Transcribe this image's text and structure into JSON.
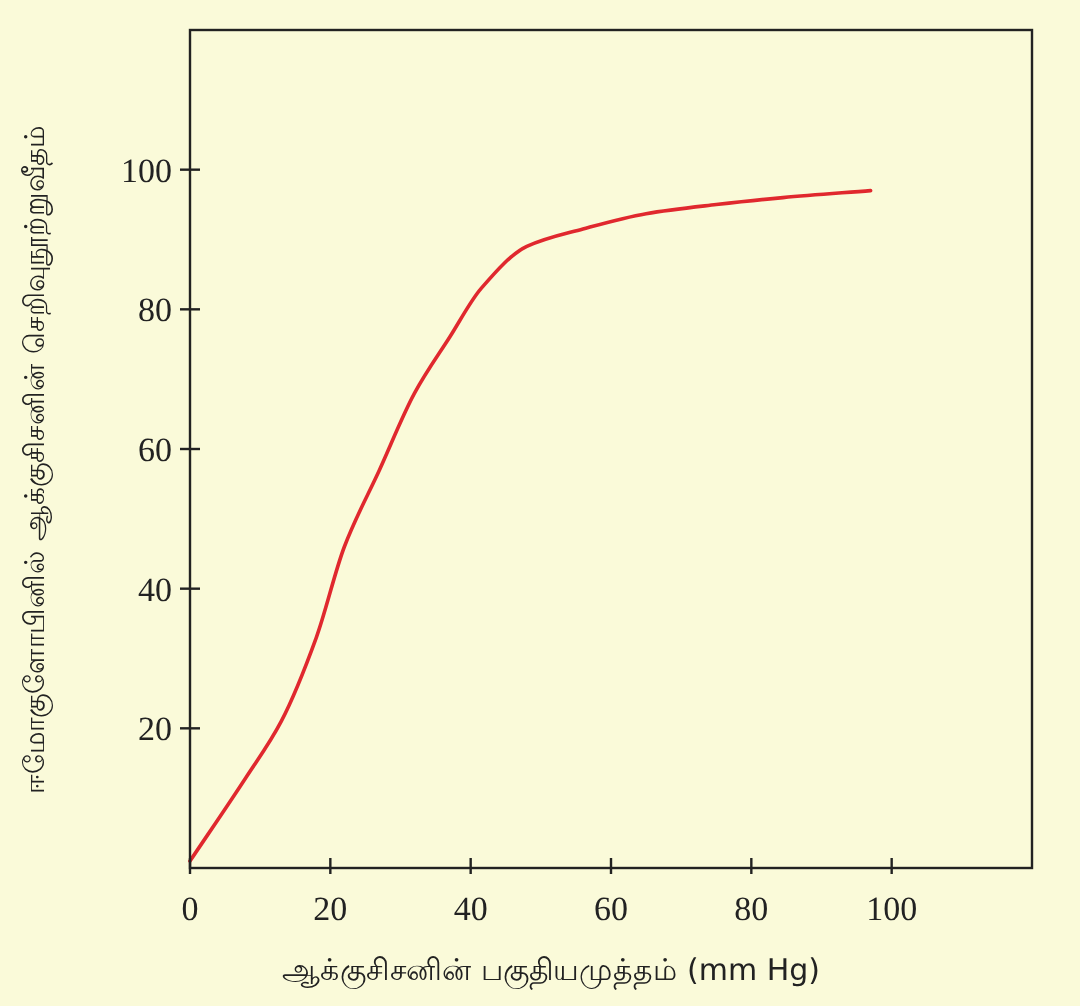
{
  "chart_data": {
    "type": "line",
    "xlabel": "ஆக்குசிசனின் பகுதியமுத்தம் (mm Hg)",
    "ylabel": "ஈமோகுளோபினில் ஆக்குசிசனின் செறிவுநூற்றுவீதம்",
    "xlim": [
      0,
      120
    ],
    "ylim": [
      0,
      120
    ],
    "xticks": [
      0,
      20,
      40,
      60,
      80,
      100
    ],
    "yticks": [
      20,
      40,
      60,
      80,
      100
    ],
    "marker": "none",
    "line_style": "solid",
    "series": [
      {
        "color": "#e0282e",
        "x": [
          0,
          8,
          13,
          18,
          22,
          27,
          32,
          37,
          41.5,
          48,
          56,
          65,
          75,
          84.5,
          97
        ],
        "values": [
          1,
          13,
          21,
          33,
          46,
          57,
          68,
          76,
          83,
          89,
          91.5,
          93.7,
          95,
          96,
          97
        ]
      }
    ]
  }
}
